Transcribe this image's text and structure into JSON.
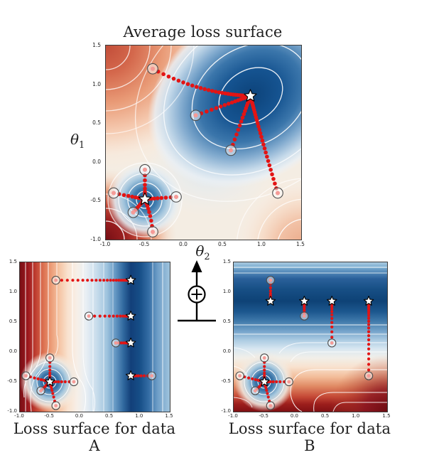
{
  "figure": {
    "background": "#ffffff",
    "aggregator": {
      "symbol": "+",
      "meaning": "sum-node combining data A and data B surfaces"
    }
  },
  "colors": {
    "trajectory_red": "#e31414",
    "start_marker_fill": "rgba(255,255,255,0.5)",
    "start_marker_ring": "#4d4d4d",
    "start_marker_center": "#f59b97",
    "star_fill": "#ffffff",
    "star_stroke": "#000000",
    "contour_line": "#ffffff",
    "colormap_low": "#7a1016",
    "colormap_high": "#0e4276"
  },
  "chart_data": [
    {
      "type": "contour",
      "title": "Average loss surface",
      "colormap": "red-white-blue",
      "xlabel": {
        "base": "θ",
        "sub": "2"
      },
      "ylabel": {
        "base": "θ",
        "sub": "1"
      },
      "xlim": [
        -1.0,
        1.5
      ],
      "ylim": [
        -1.0,
        1.5
      ],
      "xticks": [
        "-1.0",
        "-0.5",
        "0.0",
        "0.5",
        "1.0",
        "1.5"
      ],
      "yticks": [
        "1.5",
        "1.0",
        "0.5",
        "0.0",
        "-0.5",
        "-1.0"
      ],
      "minima": {
        "global": [
          0.85,
          0.85
        ],
        "local": [
          -0.5,
          -0.48
        ]
      },
      "stars": [
        [
          0.85,
          0.85
        ],
        [
          -0.5,
          -0.48
        ]
      ],
      "trajectories": [
        {
          "start": [
            -0.4,
            1.2
          ],
          "end": [
            0.85,
            0.85
          ],
          "ctrl": [
            0.2,
            0.88
          ]
        },
        {
          "start": [
            0.15,
            0.6
          ],
          "end": [
            0.85,
            0.85
          ]
        },
        {
          "start": [
            0.6,
            0.15
          ],
          "end": [
            0.85,
            0.85
          ]
        },
        {
          "start": [
            1.2,
            -0.4
          ],
          "end": [
            0.85,
            0.85
          ],
          "ctrl": [
            1.04,
            0.12
          ]
        },
        {
          "start": [
            -0.5,
            -0.1
          ],
          "end": [
            -0.5,
            -0.48
          ]
        },
        {
          "start": [
            -0.9,
            -0.4
          ],
          "end": [
            -0.5,
            -0.48
          ]
        },
        {
          "start": [
            -0.1,
            -0.45
          ],
          "end": [
            -0.5,
            -0.48
          ]
        },
        {
          "start": [
            -0.65,
            -0.65
          ],
          "end": [
            -0.5,
            -0.48
          ]
        },
        {
          "start": [
            -0.4,
            -0.9
          ],
          "end": [
            -0.5,
            -0.48
          ],
          "ctrl": [
            -0.42,
            -0.68
          ]
        }
      ]
    },
    {
      "type": "contour",
      "title": "Loss surface for data A",
      "colormap": "red-white-blue",
      "xlim": [
        -1.0,
        1.5
      ],
      "ylim": [
        -1.0,
        1.5
      ],
      "xticks": [
        "-1.0",
        "-0.5",
        "0.0",
        "0.5",
        "1.0",
        "1.5"
      ],
      "yticks": [
        "1.5",
        "1.0",
        "0.5",
        "0.0",
        "-0.5",
        "-1.0"
      ],
      "minima": {
        "valley_x": 0.85,
        "local": [
          -0.5,
          -0.5
        ]
      },
      "stars": [
        [
          0.85,
          1.2
        ],
        [
          0.85,
          0.6
        ],
        [
          0.85,
          0.15
        ],
        [
          0.85,
          -0.4
        ],
        [
          -0.5,
          -0.5
        ]
      ],
      "trajectories": [
        {
          "start": [
            -0.4,
            1.2
          ],
          "end": [
            0.85,
            1.2
          ]
        },
        {
          "start": [
            0.15,
            0.6
          ],
          "end": [
            0.85,
            0.6
          ]
        },
        {
          "start": [
            0.6,
            0.15
          ],
          "end": [
            0.85,
            0.15
          ]
        },
        {
          "start": [
            1.2,
            -0.4
          ],
          "end": [
            0.85,
            -0.4
          ]
        },
        {
          "start": [
            -0.5,
            -0.1
          ],
          "end": [
            -0.5,
            -0.5
          ]
        },
        {
          "start": [
            -0.9,
            -0.4
          ],
          "end": [
            -0.5,
            -0.5
          ]
        },
        {
          "start": [
            -0.1,
            -0.5
          ],
          "end": [
            -0.5,
            -0.5
          ]
        },
        {
          "start": [
            -0.65,
            -0.65
          ],
          "end": [
            -0.5,
            -0.5
          ]
        },
        {
          "start": [
            -0.4,
            -0.9
          ],
          "end": [
            -0.5,
            -0.5
          ]
        }
      ]
    },
    {
      "type": "contour",
      "title": "Loss surface for data B",
      "colormap": "red-white-blue",
      "xlim": [
        -1.0,
        1.5
      ],
      "ylim": [
        -1.0,
        1.5
      ],
      "xticks": [
        "-1.0",
        "-0.5",
        "0.0",
        "0.5",
        "1.0",
        "1.5"
      ],
      "yticks": [
        "1.5",
        "1.0",
        "0.5",
        "0.0",
        "-0.5",
        "-1.0"
      ],
      "minima": {
        "valley_y": 0.85,
        "local": [
          -0.5,
          -0.5
        ]
      },
      "stars": [
        [
          -0.4,
          0.85
        ],
        [
          0.15,
          0.85
        ],
        [
          0.6,
          0.85
        ],
        [
          1.2,
          0.85
        ],
        [
          -0.5,
          -0.5
        ]
      ],
      "trajectories": [
        {
          "start": [
            -0.4,
            1.2
          ],
          "end": [
            -0.4,
            0.85
          ]
        },
        {
          "start": [
            0.15,
            0.6
          ],
          "end": [
            0.15,
            0.85
          ]
        },
        {
          "start": [
            0.6,
            0.15
          ],
          "end": [
            0.6,
            0.85
          ]
        },
        {
          "start": [
            1.2,
            -0.4
          ],
          "end": [
            1.2,
            0.85
          ]
        },
        {
          "start": [
            -0.5,
            -0.1
          ],
          "end": [
            -0.5,
            -0.5
          ]
        },
        {
          "start": [
            -0.9,
            -0.4
          ],
          "end": [
            -0.5,
            -0.5
          ]
        },
        {
          "start": [
            -0.1,
            -0.5
          ],
          "end": [
            -0.5,
            -0.5
          ]
        },
        {
          "start": [
            -0.65,
            -0.65
          ],
          "end": [
            -0.5,
            -0.5
          ]
        },
        {
          "start": [
            -0.4,
            -0.9
          ],
          "end": [
            -0.5,
            -0.5
          ]
        }
      ]
    }
  ]
}
